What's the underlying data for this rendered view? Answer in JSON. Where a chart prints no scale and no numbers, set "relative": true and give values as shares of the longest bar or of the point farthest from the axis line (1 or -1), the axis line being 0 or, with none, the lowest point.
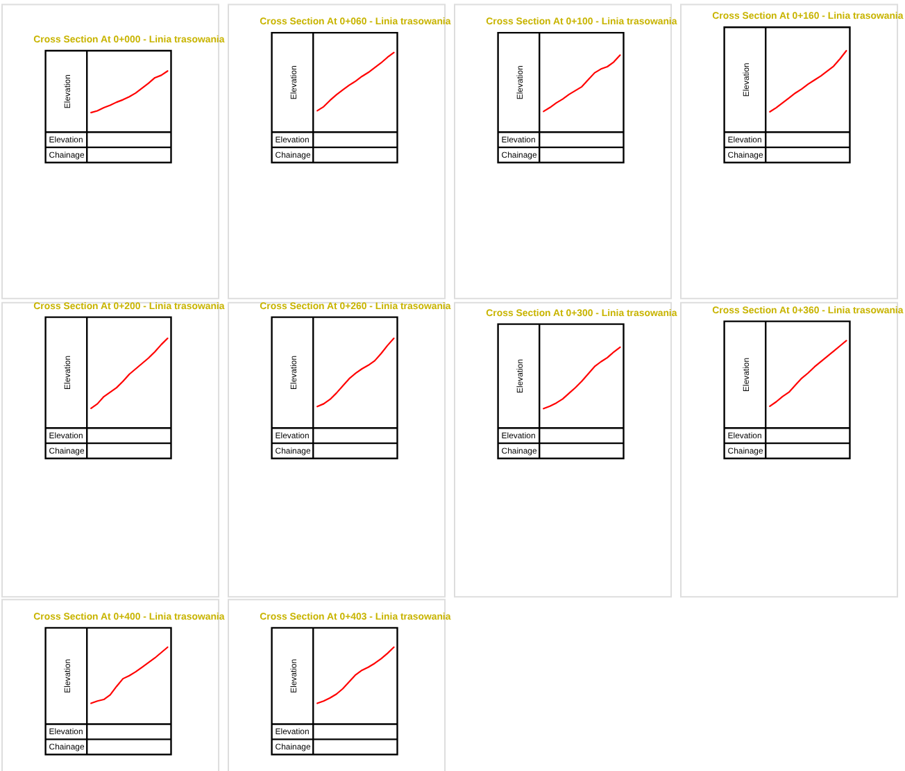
{
  "chart_data": [
    {
      "type": "line",
      "title": "Cross Section At 0+000 - Linia trasowania",
      "ylabel": "Elevation",
      "annotations": [
        "Elevation",
        "Chainage"
      ],
      "relative": true,
      "categories": [
        null,
        null,
        null,
        null,
        null,
        null,
        null,
        null,
        null,
        null,
        null,
        null,
        null
      ],
      "series": [
        {
          "color": "#ff0000",
          "values": [
            0.32,
            0.35,
            0.4,
            0.44,
            0.49,
            0.53,
            0.58,
            0.64,
            0.72,
            0.8,
            0.89,
            0.93,
            1.0
          ]
        }
      ]
    },
    {
      "type": "line",
      "title": "Cross Section At 0+060 - Linia trasowania",
      "ylabel": "Elevation",
      "annotations": [
        "Elevation",
        "Chainage"
      ],
      "relative": true,
      "categories": [
        null,
        null,
        null,
        null,
        null,
        null,
        null,
        null,
        null,
        null,
        null,
        null,
        null
      ],
      "series": [
        {
          "color": "#ff0000",
          "values": [
            0.27,
            0.32,
            0.4,
            0.47,
            0.53,
            0.59,
            0.64,
            0.7,
            0.75,
            0.81,
            0.87,
            0.94,
            1.0
          ]
        }
      ]
    },
    {
      "type": "line",
      "title": "Cross Section At 0+100 - Linia trasowania",
      "ylabel": "Elevation",
      "annotations": [
        "Elevation",
        "Chainage"
      ],
      "relative": true,
      "categories": [
        null,
        null,
        null,
        null,
        null,
        null,
        null,
        null,
        null,
        null,
        null,
        null,
        null
      ],
      "series": [
        {
          "color": "#ff0000",
          "values": [
            0.27,
            0.32,
            0.38,
            0.43,
            0.49,
            0.54,
            0.59,
            0.68,
            0.77,
            0.82,
            0.85,
            0.91,
            1.0
          ]
        }
      ]
    },
    {
      "type": "line",
      "title": "Cross Section At 0+160 - Linia trasowania",
      "ylabel": "Elevation",
      "annotations": [
        "Elevation",
        "Chainage"
      ],
      "relative": true,
      "categories": [
        null,
        null,
        null,
        null,
        null,
        null,
        null,
        null,
        null,
        null,
        null,
        null,
        null
      ],
      "series": [
        {
          "color": "#ff0000",
          "values": [
            0.25,
            0.3,
            0.36,
            0.42,
            0.48,
            0.53,
            0.59,
            0.64,
            0.69,
            0.75,
            0.81,
            0.9,
            1.0
          ]
        }
      ]
    },
    {
      "type": "line",
      "title": "Cross Section At 0+200 - Linia trasowania",
      "ylabel": "Elevation",
      "annotations": [
        "Elevation",
        "Chainage"
      ],
      "relative": true,
      "categories": [
        null,
        null,
        null,
        null,
        null,
        null,
        null,
        null,
        null,
        null,
        null,
        null,
        null
      ],
      "series": [
        {
          "color": "#ff0000",
          "values": [
            0.22,
            0.27,
            0.35,
            0.4,
            0.45,
            0.52,
            0.6,
            0.66,
            0.72,
            0.78,
            0.85,
            0.93,
            1.0
          ]
        }
      ]
    },
    {
      "type": "line",
      "title": "Cross Section At 0+260 - Linia trasowania",
      "ylabel": "Elevation",
      "annotations": [
        "Elevation",
        "Chainage"
      ],
      "relative": true,
      "categories": [
        null,
        null,
        null,
        null,
        null,
        null,
        null,
        null,
        null,
        null,
        null,
        null,
        null
      ],
      "series": [
        {
          "color": "#ff0000",
          "values": [
            0.24,
            0.27,
            0.32,
            0.39,
            0.47,
            0.55,
            0.61,
            0.66,
            0.7,
            0.75,
            0.83,
            0.92,
            1.0
          ]
        }
      ]
    },
    {
      "type": "line",
      "title": "Cross Section At 0+300 - Linia trasowania",
      "ylabel": "Elevation",
      "annotations": [
        "Elevation",
        "Chainage"
      ],
      "relative": true,
      "categories": [
        null,
        null,
        null,
        null,
        null,
        null,
        null,
        null,
        null,
        null,
        null,
        null,
        null
      ],
      "series": [
        {
          "color": "#ff0000",
          "values": [
            0.24,
            0.27,
            0.31,
            0.36,
            0.43,
            0.5,
            0.58,
            0.67,
            0.76,
            0.82,
            0.87,
            0.94,
            1.0
          ]
        }
      ]
    },
    {
      "type": "line",
      "title": "Cross Section At 0+360 - Linia trasowania",
      "ylabel": "Elevation",
      "annotations": [
        "Elevation",
        "Chainage"
      ],
      "relative": true,
      "categories": [
        null,
        null,
        null,
        null,
        null,
        null,
        null,
        null,
        null,
        null,
        null,
        null,
        null
      ],
      "series": [
        {
          "color": "#ff0000",
          "values": [
            0.25,
            0.3,
            0.36,
            0.41,
            0.49,
            0.57,
            0.63,
            0.7,
            0.76,
            0.82,
            0.88,
            0.94,
            1.0
          ]
        }
      ]
    },
    {
      "type": "line",
      "title": "Cross Section At 0+400 - Linia trasowania",
      "ylabel": "Elevation",
      "annotations": [
        "Elevation",
        "Chainage"
      ],
      "relative": true,
      "categories": [
        null,
        null,
        null,
        null,
        null,
        null,
        null,
        null,
        null,
        null,
        null,
        null,
        null
      ],
      "series": [
        {
          "color": "#ff0000",
          "values": [
            0.27,
            0.3,
            0.32,
            0.38,
            0.49,
            0.59,
            0.63,
            0.68,
            0.74,
            0.8,
            0.86,
            0.93,
            1.0
          ]
        }
      ]
    },
    {
      "type": "line",
      "title": "Cross Section At 0+403 - Linia trasowania",
      "ylabel": "Elevation",
      "annotations": [
        "Elevation",
        "Chainage"
      ],
      "relative": true,
      "categories": [
        null,
        null,
        null,
        null,
        null,
        null,
        null,
        null,
        null,
        null,
        null,
        null,
        null
      ],
      "series": [
        {
          "color": "#ff0000",
          "values": [
            0.27,
            0.3,
            0.34,
            0.39,
            0.46,
            0.55,
            0.64,
            0.7,
            0.74,
            0.79,
            0.85,
            0.92,
            1.0
          ]
        }
      ]
    }
  ]
}
